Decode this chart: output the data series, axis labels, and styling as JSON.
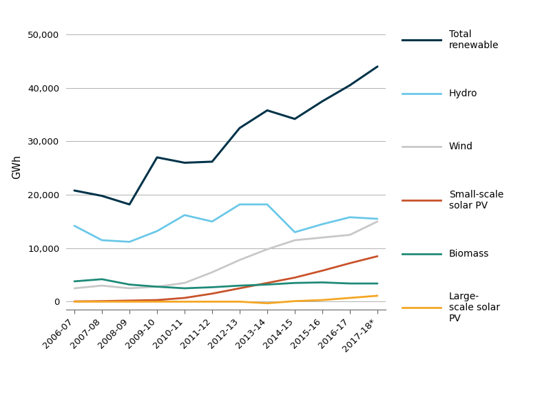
{
  "years": [
    "2006-07",
    "2007-08",
    "2008-09",
    "2009-10",
    "2010-11",
    "2011-12",
    "2012-13",
    "2013-14",
    "2014-15",
    "2015-16",
    "2016-17",
    "2017-18*"
  ],
  "series": {
    "Total renewable": {
      "values": [
        20800,
        19800,
        18200,
        27000,
        26000,
        26200,
        32500,
        35800,
        34200,
        37500,
        40500,
        44000
      ],
      "color": "#003349",
      "linewidth": 2.2,
      "zorder": 5
    },
    "Hydro": {
      "values": [
        14200,
        11500,
        11200,
        13200,
        16200,
        15000,
        18200,
        18200,
        13000,
        14500,
        15800,
        15500
      ],
      "color": "#6ac8e8",
      "linewidth": 2.0,
      "zorder": 4
    },
    "Wind": {
      "values": [
        2500,
        3000,
        2500,
        2800,
        3500,
        5500,
        7800,
        9800,
        11500,
        12000,
        12500,
        15000
      ],
      "color": "#c8c8c8",
      "linewidth": 2.0,
      "zorder": 3
    },
    "Small-scale solar PV": {
      "values": [
        50,
        100,
        200,
        300,
        700,
        1500,
        2500,
        3500,
        4500,
        5800,
        7200,
        8500
      ],
      "color": "#c8522a",
      "linewidth": 2.0,
      "zorder": 4
    },
    "Biomass": {
      "values": [
        3800,
        4200,
        3200,
        2800,
        2500,
        2700,
        3000,
        3200,
        3500,
        3600,
        3400,
        3400
      ],
      "color": "#1e8a78",
      "linewidth": 2.0,
      "zorder": 4
    },
    "Large-scale solar PV": {
      "values": [
        0,
        0,
        0,
        0,
        0,
        0,
        0,
        -300,
        100,
        300,
        700,
        1100
      ],
      "color": "#f5a623",
      "linewidth": 2.0,
      "zorder": 4
    }
  },
  "legend_order": [
    "Total renewable",
    "Hydro",
    "Wind",
    "Small-scale solar PV",
    "Biomass",
    "Large-scale solar PV"
  ],
  "legend_labels": {
    "Total renewable": "Total\nrenewable",
    "Hydro": "Hydro",
    "Wind": "Wind",
    "Small-scale solar PV": "Small-scale\nsolar PV",
    "Biomass": "Biomass",
    "Large-scale solar PV": "Large-\nscale solar\nPV"
  },
  "ylabel": "GWh",
  "ylim": [
    -1500,
    52000
  ],
  "yticks": [
    0,
    10000,
    20000,
    30000,
    40000,
    50000
  ],
  "background_color": "#ffffff",
  "grid_color": "#b0b0b0",
  "axis_fontsize": 9.5,
  "legend_fontsize": 10
}
